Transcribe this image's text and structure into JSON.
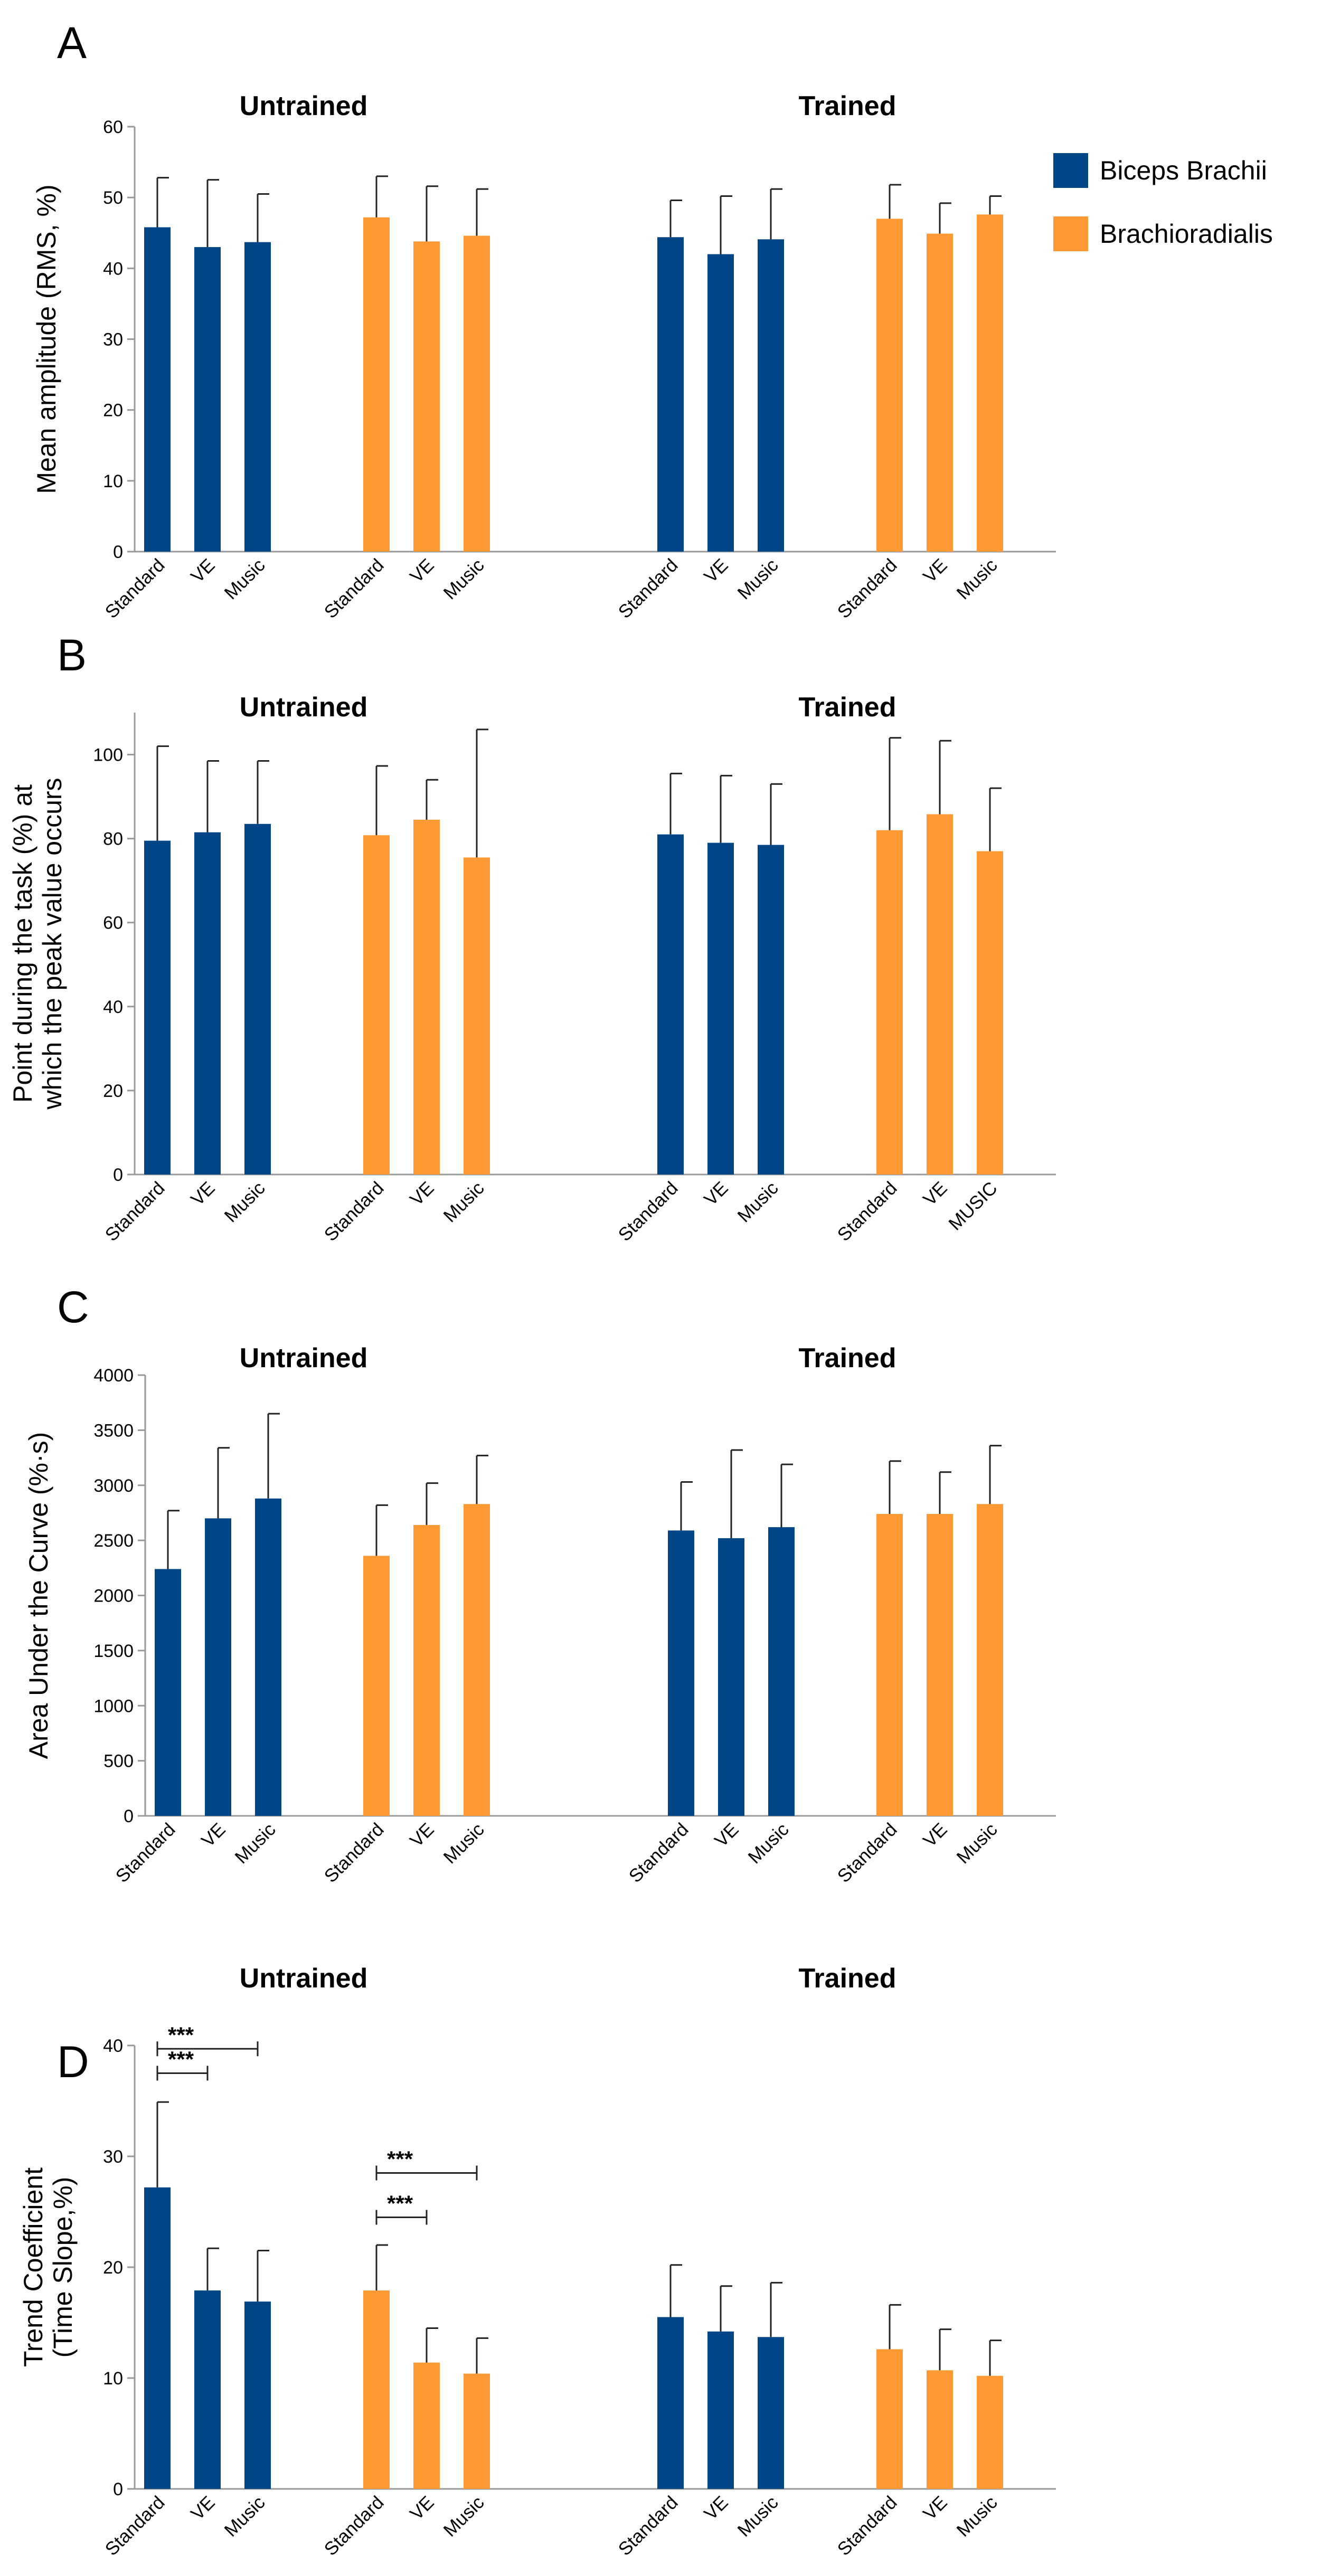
{
  "colors": {
    "biceps": "#004586",
    "brachio": "#FF9933",
    "axis": "#999999",
    "err": "#222222"
  },
  "legend": [
    {
      "label": "Biceps Brachii",
      "color": "#004586"
    },
    {
      "label": "Brachioradialis",
      "color": "#FF9933"
    }
  ],
  "chart_data": [
    {
      "type": "bar",
      "panel": "A",
      "ylabel": "Mean amplitude (RMS, %)",
      "ylim": [
        0,
        60
      ],
      "yticks": [
        0,
        10,
        20,
        30,
        40,
        50,
        60
      ],
      "groups": [
        {
          "title": "Untrained",
          "sets": [
            {
              "series": "Biceps Brachii",
              "categories": [
                "Standard",
                "VE",
                "Music"
              ],
              "values": [
                45.8,
                43.0,
                43.7
              ],
              "errors": [
                7.0,
                9.5,
                6.8
              ]
            },
            {
              "series": "Brachioradialis",
              "categories": [
                "Standard",
                "VE",
                "Music"
              ],
              "values": [
                47.2,
                43.8,
                44.6
              ],
              "errors": [
                5.8,
                7.8,
                6.6
              ]
            }
          ]
        },
        {
          "title": "Trained",
          "sets": [
            {
              "series": "Biceps Brachii",
              "categories": [
                "Standard",
                "VE",
                "Music"
              ],
              "values": [
                44.4,
                42.0,
                44.1
              ],
              "errors": [
                5.2,
                8.2,
                7.1
              ]
            },
            {
              "series": "Brachioradialis",
              "categories": [
                "Standard",
                "VE",
                "Music"
              ],
              "values": [
                47.0,
                44.9,
                47.6
              ],
              "errors": [
                4.8,
                4.3,
                2.6
              ]
            }
          ]
        }
      ],
      "significance": []
    },
    {
      "type": "bar",
      "panel": "B",
      "ylabel": [
        "Point during the task (%) at",
        "which the peak value occurs"
      ],
      "ylim": [
        0,
        110
      ],
      "yticks": [
        0,
        20,
        40,
        60,
        80,
        100
      ],
      "groups": [
        {
          "title": "Untrained",
          "sets": [
            {
              "series": "Biceps Brachii",
              "categories": [
                "Standard",
                "VE",
                "Music"
              ],
              "values": [
                79.5,
                81.5,
                83.5
              ],
              "errors": [
                22.5,
                17.0,
                15.0
              ]
            },
            {
              "series": "Brachioradialis",
              "categories": [
                "Standard",
                "VE",
                "Music"
              ],
              "values": [
                80.8,
                84.5,
                75.5
              ],
              "errors": [
                16.5,
                9.5,
                30.5
              ]
            }
          ]
        },
        {
          "title": "Trained",
          "sets": [
            {
              "series": "Biceps Brachii",
              "categories": [
                "Standard",
                "VE",
                "Music"
              ],
              "values": [
                81.0,
                79.0,
                78.5
              ],
              "errors": [
                14.5,
                16.0,
                14.5
              ]
            },
            {
              "series": "Brachioradialis",
              "categories": [
                "Standard",
                "VE",
                "MUSIC"
              ],
              "values": [
                82.0,
                85.8,
                77.0
              ],
              "errors": [
                22.0,
                17.5,
                15.0
              ]
            }
          ]
        }
      ],
      "significance": []
    },
    {
      "type": "bar",
      "panel": "C",
      "ylabel": "Area Under the Curve (%·s)",
      "ylim": [
        0,
        4000
      ],
      "yticks": [
        0,
        500,
        1000,
        1500,
        2000,
        2500,
        3000,
        3500,
        4000
      ],
      "groups": [
        {
          "title": "Untrained",
          "sets": [
            {
              "series": "Biceps Brachii",
              "categories": [
                "Standard",
                "VE",
                "Music"
              ],
              "values": [
                2240,
                2700,
                2880
              ],
              "errors": [
                530,
                640,
                770
              ]
            },
            {
              "series": "Brachioradialis",
              "categories": [
                "Standard",
                "VE",
                "Music"
              ],
              "values": [
                2360,
                2640,
                2830
              ],
              "errors": [
                460,
                380,
                440
              ]
            }
          ]
        },
        {
          "title": "Trained",
          "sets": [
            {
              "series": "Biceps Brachii",
              "categories": [
                "Standard",
                "VE",
                "Music"
              ],
              "values": [
                2590,
                2520,
                2620
              ],
              "errors": [
                440,
                800,
                570
              ]
            },
            {
              "series": "Brachioradialis",
              "categories": [
                "Standard",
                "VE",
                "Music"
              ],
              "values": [
                2740,
                2740,
                2830
              ],
              "errors": [
                480,
                380,
                530
              ]
            }
          ]
        }
      ],
      "significance": []
    },
    {
      "type": "bar",
      "panel": "D",
      "ylabel": [
        "Trend Coefficient",
        "(Time Slope,%)"
      ],
      "ylim": [
        0,
        40
      ],
      "yticks": [
        0,
        10,
        20,
        30,
        40
      ],
      "groups": [
        {
          "title": "Untrained",
          "sets": [
            {
              "series": "Biceps Brachii",
              "categories": [
                "Standard",
                "VE",
                "Music"
              ],
              "values": [
                27.2,
                17.9,
                16.9
              ],
              "errors": [
                7.7,
                3.8,
                4.6
              ]
            },
            {
              "series": "Brachioradialis",
              "categories": [
                "Standard",
                "VE",
                "Music"
              ],
              "values": [
                17.9,
                11.4,
                10.4
              ],
              "errors": [
                4.1,
                3.1,
                3.2
              ]
            }
          ]
        },
        {
          "title": "Trained",
          "sets": [
            {
              "series": "Biceps Brachii",
              "categories": [
                "Standard",
                "VE",
                "Music"
              ],
              "values": [
                15.5,
                14.2,
                13.7
              ],
              "errors": [
                4.7,
                4.1,
                4.9
              ]
            },
            {
              "series": "Brachioradialis",
              "categories": [
                "Standard",
                "VE",
                "Music"
              ],
              "values": [
                12.6,
                10.7,
                10.2
              ],
              "errors": [
                4.0,
                3.7,
                3.2
              ]
            }
          ]
        }
      ],
      "significance": [
        {
          "label": "***",
          "group": 0,
          "set": 0,
          "from": 0,
          "to": 1,
          "level": 37.5
        },
        {
          "label": "***",
          "group": 0,
          "set": 0,
          "from": 0,
          "to": 2,
          "level": 39.7
        },
        {
          "label": "***",
          "group": 0,
          "set": 1,
          "from": 0,
          "to": 1,
          "level": 24.5
        },
        {
          "label": "***",
          "group": 0,
          "set": 1,
          "from": 0,
          "to": 2,
          "level": 28.5
        }
      ]
    }
  ]
}
